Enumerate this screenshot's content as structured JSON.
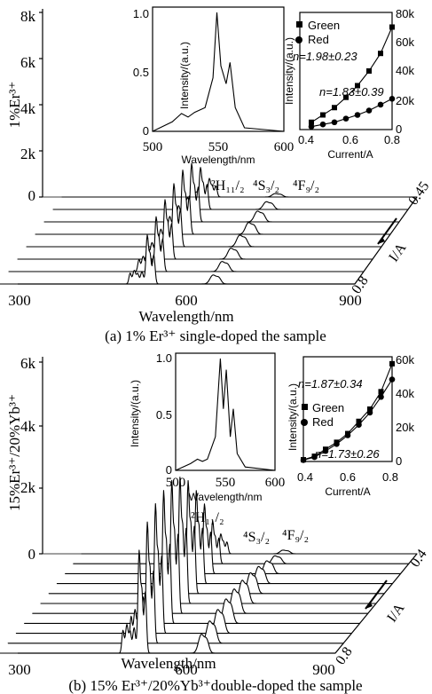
{
  "chart_data": [
    {
      "type": "line",
      "id": "a",
      "caption": "(a) 1% Er³⁺ single-doped the sample",
      "ylabel_side": "1%Er³⁺",
      "xlabel": "Wavelength/nm",
      "xticks": [
        "300",
        "600",
        "900"
      ],
      "xlim": [
        300,
        900
      ],
      "yticks": [
        "0",
        "2k",
        "4k",
        "6k",
        "8k"
      ],
      "ylim": [
        0,
        8000
      ],
      "depth_label": "I/A",
      "depth_ticks": [
        "0.45",
        "0.8"
      ],
      "annotations": [
        "²H₁₁/₂",
        "⁴S₃/₂",
        "⁴F₉/₂"
      ],
      "stack_count": 8,
      "peak_heights_front_to_back": [
        2100,
        2350,
        2550,
        2700,
        2750,
        2500,
        1800,
        800
      ],
      "inset_spectrum": {
        "xlabel": "Wavelength/nm",
        "ylabel": "Intensity/(a.u.)",
        "xticks": [
          "500",
          "550",
          "600"
        ],
        "yticks": [
          "0",
          "0.5",
          "1.0"
        ],
        "x": [
          500,
          515,
          522,
          527,
          532,
          540,
          546,
          549,
          552,
          556,
          559,
          563,
          570,
          600
        ],
        "y": [
          0,
          0.08,
          0.15,
          0.12,
          0.16,
          0.2,
          0.45,
          1.0,
          0.55,
          0.4,
          0.58,
          0.2,
          0.03,
          0
        ]
      },
      "inset_power": {
        "xlabel": "Current/A",
        "ylabel": "Intensity/(a.u.)",
        "xticks": [
          "0.4",
          "0.6",
          "0.8"
        ],
        "yticks": [
          "0",
          "20k",
          "40k",
          "60k",
          "80k"
        ],
        "xlim": [
          0.4,
          0.8
        ],
        "ylim": [
          0,
          80000
        ],
        "series": [
          {
            "name": "Green",
            "marker": "square",
            "fit": "n=1.98±0.23",
            "x": [
              0.45,
              0.5,
              0.55,
              0.6,
              0.65,
              0.7,
              0.75,
              0.8
            ],
            "y": [
              5000,
              10000,
              15000,
              22000,
              30000,
              40000,
              52000,
              70000
            ]
          },
          {
            "name": "Red",
            "marker": "circle",
            "fit": "n=1.83±0.39",
            "x": [
              0.45,
              0.5,
              0.55,
              0.6,
              0.65,
              0.7,
              0.75,
              0.8
            ],
            "y": [
              2000,
              3500,
              5000,
              7500,
              10000,
              13000,
              17000,
              21000
            ]
          }
        ]
      }
    },
    {
      "type": "line",
      "id": "b",
      "caption": "(b) 15% Er³⁺/20%Yb³⁺double-doped the sample",
      "ylabel_side": "15%Er³⁺/20%Yb³⁺",
      "xlabel": "Wavelength/nm",
      "xticks": [
        "300",
        "600",
        "900"
      ],
      "xlim": [
        300,
        900
      ],
      "yticks": [
        "0",
        "2k",
        "4k",
        "6k"
      ],
      "ylim": [
        0,
        6000
      ],
      "depth_label": "I/A",
      "depth_ticks": [
        "0.4",
        "0.8"
      ],
      "annotations": [
        "²H₁₁/₂",
        "⁴S₃/₂",
        "⁴F₉/₂"
      ],
      "stack_count": 11,
      "peak_heights_front_to_back": [
        3100,
        3650,
        3900,
        4000,
        4000,
        3800,
        3400,
        2800,
        2100,
        1300,
        600
      ],
      "inset_spectrum": {
        "xlabel": "Wavelength/nm",
        "ylabel": "Intensity/(a.u.)",
        "xticks": [
          "500",
          "550",
          "600"
        ],
        "yticks": [
          "0",
          "0.5",
          "1.0"
        ],
        "x": [
          500,
          515,
          522,
          527,
          532,
          540,
          545,
          548,
          551,
          555,
          558,
          562,
          570,
          600
        ],
        "y": [
          0,
          0.06,
          0.1,
          0.08,
          0.1,
          0.3,
          1.0,
          0.55,
          0.9,
          0.3,
          0.55,
          0.15,
          0.03,
          0
        ]
      },
      "inset_power": {
        "xlabel": "Current/A",
        "ylabel": "Intensity/(a.u.)",
        "xticks": [
          "0.4",
          "0.6",
          "0.8"
        ],
        "yticks": [
          "0",
          "20k",
          "40k",
          "60k"
        ],
        "xlim": [
          0.4,
          0.8
        ],
        "ylim": [
          0,
          60000
        ],
        "series": [
          {
            "name": "Green",
            "marker": "square",
            "fit": "n=1.87±0.34",
            "x": [
              0.4,
              0.45,
              0.5,
              0.55,
              0.6,
              0.65,
              0.7,
              0.75,
              0.8
            ],
            "y": [
              1000,
              3000,
              7000,
              11000,
              16000,
              23000,
              30000,
              40000,
              56000
            ]
          },
          {
            "name": "Red",
            "marker": "circle",
            "fit": "n=1.73±0.26",
            "x": [
              0.4,
              0.45,
              0.5,
              0.55,
              0.6,
              0.65,
              0.7,
              0.75,
              0.8
            ],
            "y": [
              800,
              2500,
              6000,
              10000,
              15000,
              21000,
              28000,
              37000,
              47000
            ]
          }
        ]
      }
    }
  ]
}
